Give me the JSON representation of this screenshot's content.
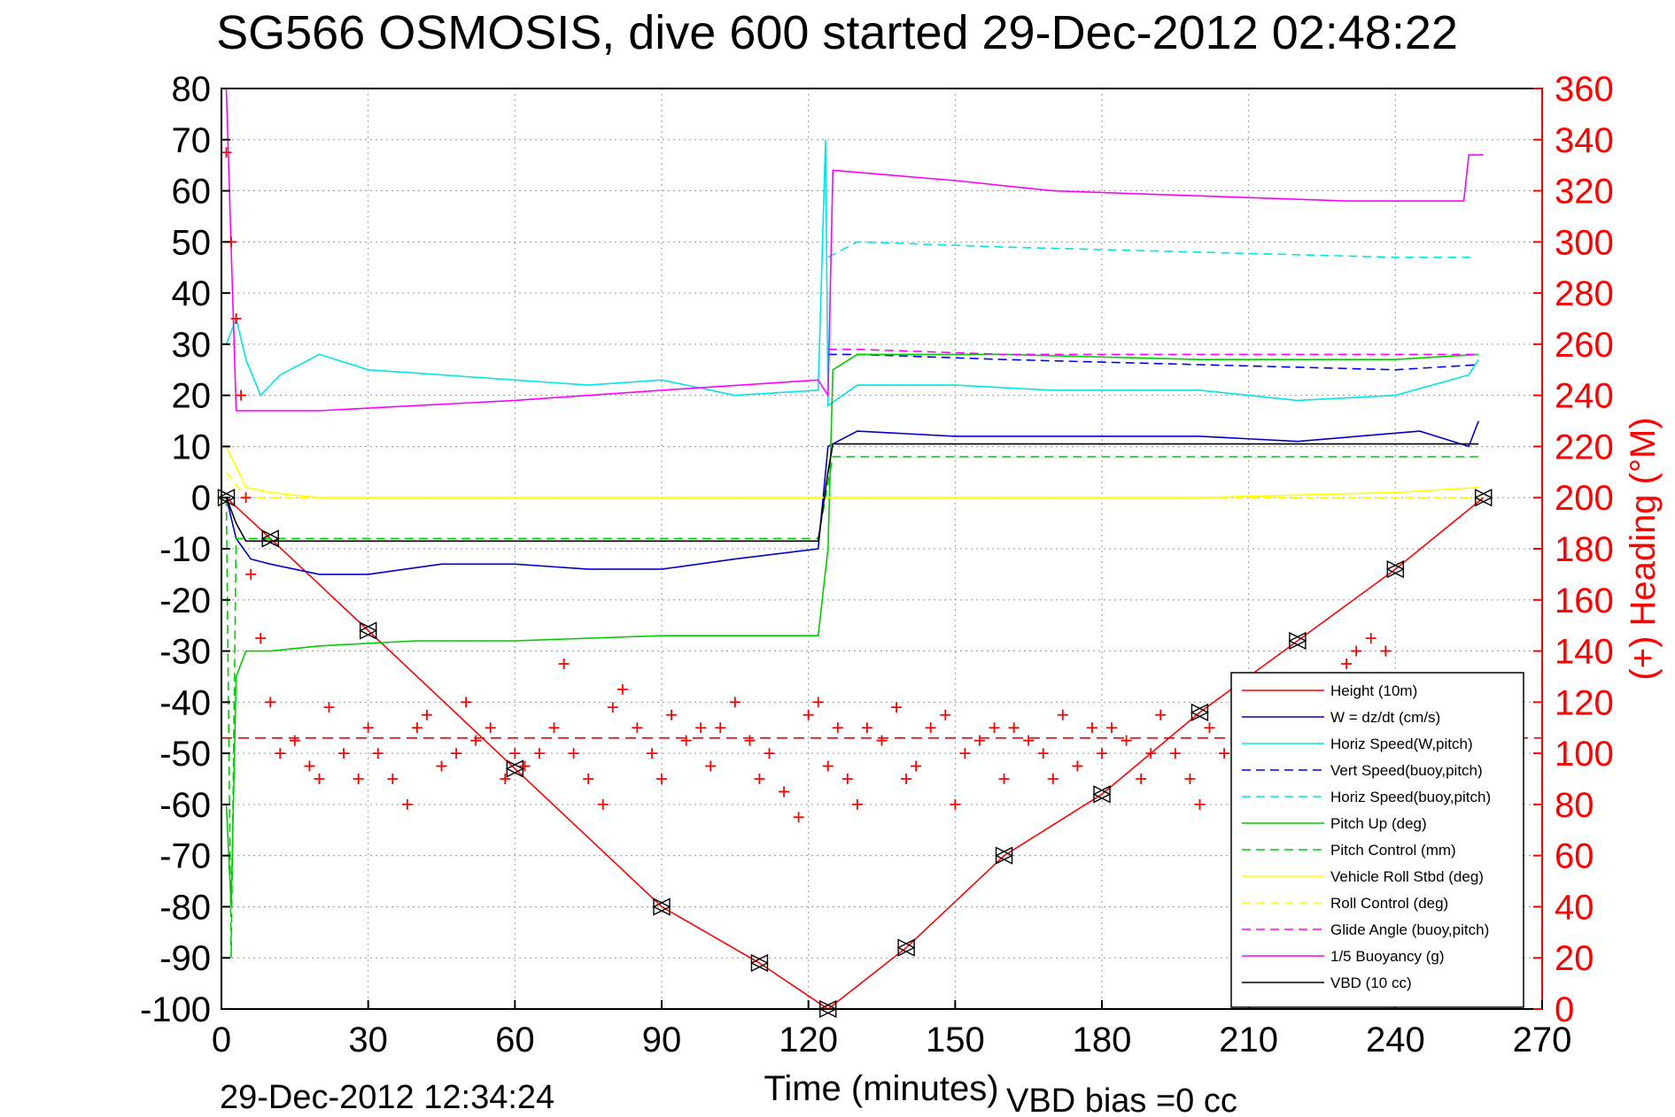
{
  "chart_data": {
    "type": "line",
    "title": "SG566 OSMOSIS, dive 600 started 29-Dec-2012 02:48:22",
    "xlabel": "Time (minutes)",
    "ylabel_right": "(+) Heading (°M)",
    "footer_left": "29-Dec-2012 12:34:24",
    "footer_right": "VBD bias =0 cc",
    "xlim": [
      0,
      270
    ],
    "ylim": [
      -100,
      80
    ],
    "ylim_right": [
      0,
      360
    ],
    "x_ticks": [
      "0",
      "30",
      "60",
      "90",
      "120",
      "150",
      "180",
      "210",
      "240",
      "270"
    ],
    "y_ticks": [
      "80",
      "70",
      "60",
      "50",
      "40",
      "30",
      "20",
      "10",
      "0",
      "-10",
      "-20",
      "-30",
      "-40",
      "-50",
      "-60",
      "-70",
      "-80",
      "-90",
      "-100"
    ],
    "y_right_ticks": [
      "360",
      "340",
      "320",
      "300",
      "280",
      "260",
      "240",
      "220",
      "200",
      "180",
      "160",
      "140",
      "120",
      "100",
      "80",
      "60",
      "40",
      "20",
      "0"
    ],
    "grid": true,
    "legend_position": "bottom-right",
    "colors": {
      "red": "#ff0000",
      "blue": "#0000cc",
      "cyan": "#00e5e5",
      "green": "#00cc00",
      "yellow": "#ffff00",
      "magenta": "#ff00ff",
      "black": "#000000"
    },
    "series": [
      {
        "name": "Height (10m)",
        "color": "#ff0000",
        "style": "solid",
        "x": [
          1,
          10,
          30,
          60,
          90,
          110,
          124,
          140,
          160,
          180,
          200,
          220,
          240,
          258
        ],
        "y": [
          0,
          -8,
          -26,
          -53,
          -80,
          -91,
          -100,
          -88,
          -70,
          -58,
          -42,
          -28,
          -14,
          0
        ]
      },
      {
        "name": "W = dz/dt (cm/s)",
        "color": "#0000cc",
        "style": "solid",
        "x": [
          1,
          3,
          6,
          10,
          20,
          30,
          45,
          60,
          75,
          90,
          105,
          122,
          124,
          130,
          150,
          170,
          200,
          220,
          245,
          255,
          257
        ],
        "y": [
          0,
          -8,
          -12,
          -13,
          -15,
          -15,
          -13,
          -13,
          -14,
          -14,
          -12,
          -10,
          10,
          13,
          12,
          12,
          12,
          11,
          13,
          10,
          15
        ]
      },
      {
        "name": "Horiz Speed(W,pitch)",
        "color": "#00e5e5",
        "style": "solid",
        "x": [
          1,
          3,
          5,
          8,
          12,
          20,
          30,
          45,
          60,
          75,
          90,
          105,
          122,
          123.5,
          124,
          130,
          150,
          170,
          200,
          220,
          240,
          255,
          257
        ],
        "y": [
          30,
          35,
          27,
          20,
          24,
          28,
          25,
          24,
          23,
          22,
          23,
          20,
          21,
          70,
          18,
          22,
          22,
          21,
          21,
          19,
          20,
          24,
          27
        ]
      },
      {
        "name": "Vert Speed(buoy,pitch)",
        "color": "#0000ff",
        "style": "dashed",
        "x": [
          124,
          130,
          160,
          200,
          240,
          257
        ],
        "y": [
          28,
          28,
          27,
          26,
          25,
          26
        ]
      },
      {
        "name": "Horiz Speed(buoy,pitch)",
        "color": "#00e5e5",
        "style": "dashed",
        "x": [
          124,
          130,
          160,
          200,
          240,
          256
        ],
        "y": [
          47,
          50,
          49,
          48,
          47,
          47
        ]
      },
      {
        "name": "Pitch Up (deg)",
        "color": "#00cc00",
        "style": "solid",
        "x": [
          1,
          2,
          3,
          5,
          10,
          20,
          40,
          60,
          90,
          122,
          124,
          125,
          130,
          160,
          200,
          240,
          257
        ],
        "y": [
          -60,
          -80,
          -35,
          -30,
          -30,
          -29,
          -28,
          -28,
          -27,
          -27,
          -10,
          25,
          28,
          28,
          27,
          27,
          28
        ]
      },
      {
        "name": "Pitch Control (mm)",
        "color": "#00cc00",
        "style": "dashed",
        "x": [
          1,
          2,
          3,
          5,
          122,
          125,
          257
        ],
        "y": [
          0,
          -90,
          -8,
          -8,
          -8,
          8,
          8
        ]
      },
      {
        "name": "Vehicle Roll Stbd (deg)",
        "color": "#ffff00",
        "style": "solid",
        "x": [
          1,
          5,
          10,
          20,
          122,
          126,
          150,
          200,
          240,
          257
        ],
        "y": [
          10,
          2,
          1,
          0,
          0,
          0,
          0,
          0,
          1,
          2
        ]
      },
      {
        "name": "Roll Control (deg)",
        "color": "#ffff00",
        "style": "dashed",
        "x": [
          1,
          5,
          122,
          126,
          257
        ],
        "y": [
          5,
          0,
          0,
          0,
          0
        ]
      },
      {
        "name": "Glide Angle (buoy,pitch)",
        "color": "#ff00ff",
        "style": "dashed",
        "x": [
          124,
          130,
          160,
          200,
          240,
          257
        ],
        "y": [
          29,
          29,
          28,
          28,
          28,
          28
        ]
      },
      {
        "name": "1/5 Buoyancy (g)",
        "color": "#ff00ff",
        "style": "solid",
        "x": [
          1,
          3,
          20,
          60,
          90,
          122,
          124,
          125,
          150,
          170,
          200,
          230,
          240,
          254,
          255,
          258
        ],
        "y": [
          80,
          17,
          17,
          19,
          21,
          23,
          20,
          64,
          62,
          60,
          59,
          58,
          58,
          58,
          67,
          67
        ]
      },
      {
        "name": "VBD (10 cc)",
        "color": "#000000",
        "style": "solid",
        "x": [
          1,
          3,
          5,
          122,
          124,
          125,
          257
        ],
        "y": [
          0,
          -5,
          -8.5,
          -8.5,
          5,
          10.5,
          10.5
        ]
      }
    ],
    "heading": {
      "name": "Heading",
      "color": "#ff0000",
      "marker": "+",
      "axis": "right",
      "mean": 106,
      "x": [
        1,
        2,
        3,
        4,
        5,
        6,
        8,
        10,
        12,
        15,
        18,
        20,
        22,
        25,
        28,
        30,
        32,
        35,
        38,
        40,
        42,
        45,
        48,
        50,
        52,
        55,
        58,
        60,
        62,
        65,
        68,
        70,
        72,
        75,
        78,
        80,
        82,
        85,
        88,
        90,
        92,
        95,
        98,
        100,
        102,
        105,
        108,
        110,
        112,
        115,
        118,
        120,
        122,
        124,
        126,
        128,
        130,
        132,
        135,
        138,
        140,
        142,
        145,
        148,
        150,
        152,
        155,
        158,
        160,
        162,
        165,
        168,
        170,
        172,
        175,
        178,
        180,
        182,
        185,
        188,
        190,
        192,
        195,
        198,
        200,
        202,
        205,
        208,
        210,
        212,
        215,
        218,
        220,
        222,
        225,
        228,
        230,
        232,
        235,
        238,
        240,
        242,
        245,
        248,
        250,
        252,
        255,
        257
      ],
      "y": [
        335,
        300,
        270,
        240,
        200,
        170,
        145,
        120,
        100,
        105,
        95,
        90,
        118,
        100,
        90,
        110,
        100,
        90,
        80,
        110,
        115,
        95,
        100,
        120,
        105,
        110,
        90,
        100,
        95,
        100,
        110,
        135,
        100,
        90,
        80,
        118,
        125,
        110,
        100,
        90,
        115,
        105,
        110,
        95,
        110,
        120,
        105,
        90,
        100,
        85,
        75,
        115,
        120,
        95,
        110,
        90,
        80,
        110,
        105,
        118,
        90,
        95,
        110,
        115,
        80,
        100,
        105,
        110,
        90,
        110,
        105,
        100,
        90,
        115,
        95,
        110,
        100,
        110,
        105,
        90,
        100,
        115,
        100,
        90,
        80,
        110,
        100,
        90,
        100,
        110,
        105,
        110,
        100,
        95,
        110,
        105,
        135,
        140,
        145,
        140,
        120,
        105,
        100,
        110,
        100,
        95,
        100,
        90
      ]
    }
  }
}
